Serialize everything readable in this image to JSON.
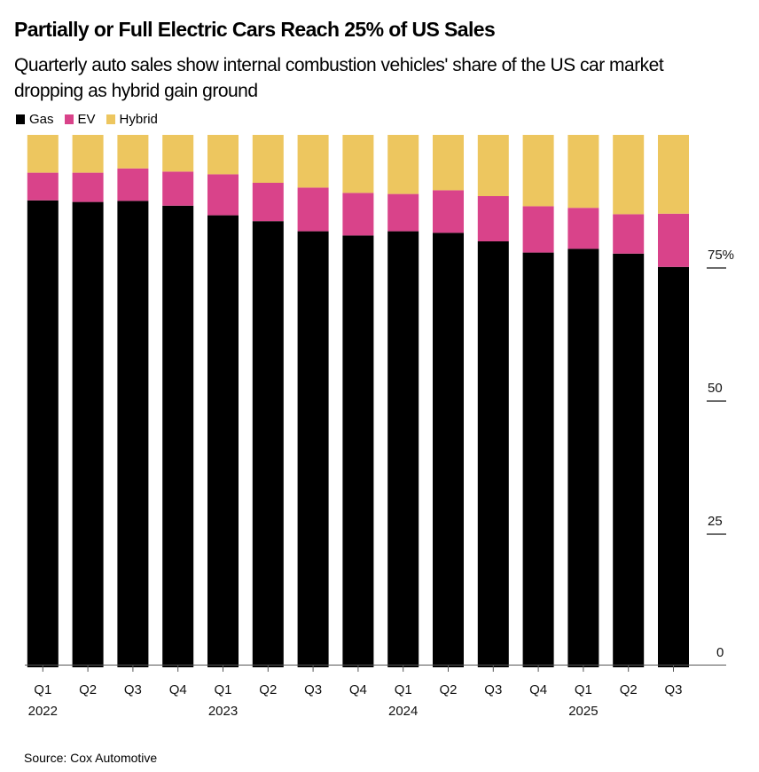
{
  "header": {
    "title": "Partially or Full Electric Cars Reach 25% of US Sales",
    "subtitle": "Quarterly auto sales show internal combustion vehicles' share of the US car market dropping as hybrid gain ground"
  },
  "legend": [
    {
      "label": "Gas",
      "color": "#000000"
    },
    {
      "label": "EV",
      "color": "#d9438a"
    },
    {
      "label": "Hybrid",
      "color": "#edc65f"
    }
  ],
  "source": "Source: Cox Automotive",
  "chart_data": {
    "type": "bar",
    "stacked": true,
    "title": "Partially or Full Electric Cars Reach 25% of US Sales",
    "subtitle": "Quarterly auto sales show internal combustion vehicles' share of the US car market dropping as hybrid gain ground",
    "xlabel": "",
    "ylabel": "",
    "ylim": [
      0,
      100
    ],
    "yticks": [
      0,
      25,
      50,
      75
    ],
    "ytick_labels": [
      "0",
      "25",
      "50",
      "75%"
    ],
    "y_axis_position": "right",
    "grid": false,
    "legend_position": "top-left",
    "categories": [
      "Q1",
      "Q2",
      "Q3",
      "Q4",
      "Q1",
      "Q2",
      "Q3",
      "Q4",
      "Q1",
      "Q2",
      "Q3",
      "Q4",
      "Q1",
      "Q2",
      "Q3"
    ],
    "year_labels": [
      "2022",
      "",
      "",
      "",
      "2023",
      "",
      "",
      "",
      "2024",
      "",
      "",
      "",
      "2025",
      "",
      ""
    ],
    "series": [
      {
        "name": "Gas",
        "color": "#000000",
        "values": [
          87.7,
          87.4,
          87.6,
          86.7,
          84.9,
          83.8,
          81.9,
          81.1,
          81.9,
          81.6,
          80.0,
          77.9,
          78.6,
          77.7,
          75.2
        ]
      },
      {
        "name": "EV",
        "color": "#d9438a",
        "values": [
          5.2,
          5.5,
          6.1,
          6.4,
          7.7,
          7.2,
          8.2,
          8.0,
          7.0,
          8.0,
          8.5,
          8.7,
          7.7,
          7.4,
          10.0
        ]
      },
      {
        "name": "Hybrid",
        "color": "#edc65f",
        "values": [
          7.1,
          7.1,
          6.3,
          6.9,
          7.4,
          9.0,
          9.9,
          10.9,
          11.1,
          10.4,
          11.5,
          13.4,
          13.7,
          14.9,
          14.8
        ]
      }
    ],
    "source": "Source: Cox Automotive"
  }
}
